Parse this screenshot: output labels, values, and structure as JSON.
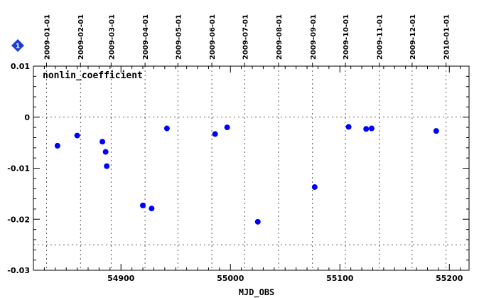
{
  "chart_data": {
    "type": "scatter",
    "annotation": "nonlin_coefficient",
    "xlabel": "MJD_OBS",
    "ylabel": "",
    "xlim": [
      54820,
      55218
    ],
    "ylim": [
      -0.03,
      0.01
    ],
    "x_ticks": [
      {
        "value": 54900,
        "label": "54900"
      },
      {
        "value": 55000,
        "label": "55000"
      },
      {
        "value": 55100,
        "label": "55100"
      },
      {
        "value": 55200,
        "label": "55200"
      }
    ],
    "y_ticks": [
      {
        "value": 0.01,
        "label": "0.01"
      },
      {
        "value": 0,
        "label": "0"
      },
      {
        "value": -0.01,
        "label": "-0.01"
      },
      {
        "value": -0.02,
        "label": "-0.02"
      },
      {
        "value": -0.03,
        "label": "-0.03"
      }
    ],
    "date_ticks": [
      {
        "mjd": 54832,
        "label": "2009-01-01"
      },
      {
        "mjd": 54863,
        "label": "2009-02-01"
      },
      {
        "mjd": 54891,
        "label": "2009-03-01"
      },
      {
        "mjd": 54922,
        "label": "2009-04-01"
      },
      {
        "mjd": 54952,
        "label": "2009-05-01"
      },
      {
        "mjd": 54983,
        "label": "2009-06-01"
      },
      {
        "mjd": 55013,
        "label": "2009-07-01"
      },
      {
        "mjd": 55044,
        "label": "2009-08-01"
      },
      {
        "mjd": 55075,
        "label": "2009-09-01"
      },
      {
        "mjd": 55105,
        "label": "2009-10-01"
      },
      {
        "mjd": 55136,
        "label": "2009-11-01"
      },
      {
        "mjd": 55166,
        "label": "2009-12-01"
      },
      {
        "mjd": 55197,
        "label": "2010-01-01"
      }
    ],
    "reference_lines_y": [
      0,
      -0.025
    ],
    "grid": "dotted vertical lines at month boundaries; dotted horizontal lines at 0 and -0.025",
    "series": [
      {
        "color": "#0000ff",
        "points": [
          {
            "x": 54842,
            "y": -0.0056
          },
          {
            "x": 54860,
            "y": -0.0036
          },
          {
            "x": 54883,
            "y": -0.0048
          },
          {
            "x": 54886,
            "y": -0.0068
          },
          {
            "x": 54887,
            "y": -0.0096
          },
          {
            "x": 54920,
            "y": -0.0173
          },
          {
            "x": 54928,
            "y": -0.0179
          },
          {
            "x": 54942,
            "y": -0.0022
          },
          {
            "x": 54986,
            "y": -0.0033
          },
          {
            "x": 54997,
            "y": -0.002
          },
          {
            "x": 55025,
            "y": -0.0205
          },
          {
            "x": 55077,
            "y": -0.0137
          },
          {
            "x": 55108,
            "y": -0.0019
          },
          {
            "x": 55124,
            "y": -0.0023
          },
          {
            "x": 55129,
            "y": -0.0022
          },
          {
            "x": 55188,
            "y": -0.0027
          }
        ]
      }
    ]
  },
  "badge": {
    "label": "1",
    "color": "#1a3fd6"
  }
}
